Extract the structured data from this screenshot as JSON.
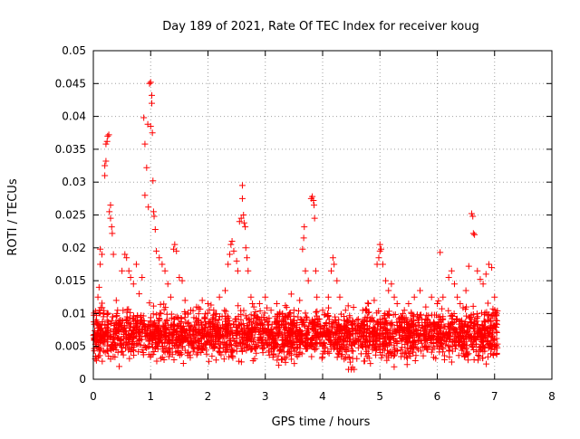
{
  "chart_data": {
    "type": "scatter",
    "title": "Day 189 of 2021, Rate Of TEC Index for receiver koug",
    "xlabel": "GPS time / hours",
    "ylabel": "ROTI / TECUs",
    "xlim": [
      0,
      8
    ],
    "ylim": [
      0,
      0.05
    ],
    "grid": true,
    "marker": "+",
    "x_ticks": [
      0,
      1,
      2,
      3,
      4,
      5,
      6,
      7,
      8
    ],
    "x_tick_labels": [
      "0",
      "1",
      "2",
      "3",
      "4",
      "5",
      "6",
      "7",
      "8"
    ],
    "y_ticks": [
      0,
      0.005,
      0.01,
      0.015,
      0.02,
      0.025,
      0.03,
      0.035,
      0.04,
      0.045,
      0.05
    ],
    "y_tick_labels": [
      "0",
      "0.005",
      "0.01",
      "0.015",
      "0.02",
      "0.025",
      "0.03",
      "0.035",
      "0.04",
      "0.045",
      "0.05"
    ],
    "series": [
      {
        "name": "ROTI",
        "color": "#ff0000",
        "points": [
          [
            0.02,
            0.006
          ],
          [
            0.05,
            0.009
          ],
          [
            0.08,
            0.0125
          ],
          [
            0.1,
            0.014
          ],
          [
            0.12,
            0.0175
          ],
          [
            0.12,
            0.0198
          ],
          [
            0.15,
            0.019
          ],
          [
            0.18,
            0.01
          ],
          [
            0.2,
            0.031
          ],
          [
            0.2,
            0.0325
          ],
          [
            0.22,
            0.0332
          ],
          [
            0.22,
            0.0358
          ],
          [
            0.24,
            0.0362
          ],
          [
            0.25,
            0.037
          ],
          [
            0.27,
            0.0372
          ],
          [
            0.28,
            0.0255
          ],
          [
            0.3,
            0.0265
          ],
          [
            0.3,
            0.0245
          ],
          [
            0.32,
            0.0232
          ],
          [
            0.33,
            0.0222
          ],
          [
            0.35,
            0.019
          ],
          [
            0.4,
            0.012
          ],
          [
            0.45,
            0.0085
          ],
          [
            0.5,
            0.0165
          ],
          [
            0.55,
            0.019
          ],
          [
            0.58,
            0.0185
          ],
          [
            0.62,
            0.0165
          ],
          [
            0.65,
            0.0155
          ],
          [
            0.7,
            0.0145
          ],
          [
            0.75,
            0.0175
          ],
          [
            0.8,
            0.013
          ],
          [
            0.85,
            0.0155
          ],
          [
            0.88,
            0.0398
          ],
          [
            0.9,
            0.0358
          ],
          [
            0.9,
            0.028
          ],
          [
            0.93,
            0.0322
          ],
          [
            0.95,
            0.0388
          ],
          [
            0.96,
            0.0262
          ],
          [
            0.98,
            0.045
          ],
          [
            1.0,
            0.0452
          ],
          [
            1.0,
            0.0385
          ],
          [
            1.02,
            0.0432
          ],
          [
            1.02,
            0.042
          ],
          [
            1.03,
            0.0375
          ],
          [
            1.04,
            0.0302
          ],
          [
            1.05,
            0.0255
          ],
          [
            1.06,
            0.0248
          ],
          [
            1.08,
            0.0228
          ],
          [
            1.1,
            0.0195
          ],
          [
            1.15,
            0.0185
          ],
          [
            1.2,
            0.0175
          ],
          [
            1.25,
            0.0165
          ],
          [
            1.3,
            0.0145
          ],
          [
            1.35,
            0.0125
          ],
          [
            1.4,
            0.0198
          ],
          [
            1.42,
            0.0205
          ],
          [
            1.45,
            0.0195
          ],
          [
            1.5,
            0.0155
          ],
          [
            1.55,
            0.015
          ],
          [
            1.6,
            0.012
          ],
          [
            1.7,
            0.0105
          ],
          [
            1.8,
            0.011
          ],
          [
            1.9,
            0.012
          ],
          [
            2.0,
            0.0115
          ],
          [
            2.1,
            0.0105
          ],
          [
            2.2,
            0.0125
          ],
          [
            2.3,
            0.0135
          ],
          [
            2.35,
            0.0175
          ],
          [
            2.38,
            0.019
          ],
          [
            2.4,
            0.0205
          ],
          [
            2.42,
            0.021
          ],
          [
            2.45,
            0.0195
          ],
          [
            2.5,
            0.018
          ],
          [
            2.52,
            0.0165
          ],
          [
            2.55,
            0.024
          ],
          [
            2.58,
            0.0245
          ],
          [
            2.6,
            0.0295
          ],
          [
            2.6,
            0.0275
          ],
          [
            2.62,
            0.025
          ],
          [
            2.63,
            0.0238
          ],
          [
            2.65,
            0.0232
          ],
          [
            2.66,
            0.02
          ],
          [
            2.68,
            0.0185
          ],
          [
            2.7,
            0.0165
          ],
          [
            2.75,
            0.0125
          ],
          [
            2.8,
            0.011
          ],
          [
            2.9,
            0.0115
          ],
          [
            3.0,
            0.0125
          ],
          [
            3.1,
            0.0105
          ],
          [
            3.2,
            0.0115
          ],
          [
            3.3,
            0.01
          ],
          [
            3.4,
            0.0095
          ],
          [
            3.5,
            0.0105
          ],
          [
            3.6,
            0.012
          ],
          [
            3.65,
            0.0198
          ],
          [
            3.67,
            0.0215
          ],
          [
            3.68,
            0.0232
          ],
          [
            3.7,
            0.0165
          ],
          [
            3.75,
            0.015
          ],
          [
            3.8,
            0.0275
          ],
          [
            3.82,
            0.0278
          ],
          [
            3.84,
            0.0272
          ],
          [
            3.85,
            0.0265
          ],
          [
            3.86,
            0.0245
          ],
          [
            3.88,
            0.0165
          ],
          [
            3.9,
            0.0125
          ],
          [
            4.0,
            0.0105
          ],
          [
            4.1,
            0.0125
          ],
          [
            4.15,
            0.0165
          ],
          [
            4.18,
            0.0185
          ],
          [
            4.2,
            0.0175
          ],
          [
            4.25,
            0.015
          ],
          [
            4.3,
            0.0125
          ],
          [
            4.4,
            0.0105
          ],
          [
            4.45,
            0.0015
          ],
          [
            4.5,
            0.0015
          ],
          [
            4.52,
            0.0018
          ],
          [
            4.55,
            0.0015
          ],
          [
            4.6,
            0.009
          ],
          [
            4.7,
            0.0105
          ],
          [
            4.8,
            0.0115
          ],
          [
            4.9,
            0.012
          ],
          [
            4.95,
            0.0175
          ],
          [
            4.98,
            0.0185
          ],
          [
            5.0,
            0.0205
          ],
          [
            5.0,
            0.0195
          ],
          [
            5.02,
            0.0198
          ],
          [
            5.05,
            0.0175
          ],
          [
            5.1,
            0.015
          ],
          [
            5.15,
            0.0135
          ],
          [
            5.2,
            0.0145
          ],
          [
            5.25,
            0.0125
          ],
          [
            5.3,
            0.0115
          ],
          [
            5.4,
            0.01
          ],
          [
            5.5,
            0.0115
          ],
          [
            5.6,
            0.0125
          ],
          [
            5.7,
            0.0135
          ],
          [
            5.8,
            0.011
          ],
          [
            5.9,
            0.0125
          ],
          [
            6.0,
            0.0115
          ],
          [
            6.05,
            0.0193
          ],
          [
            6.1,
            0.0125
          ],
          [
            6.2,
            0.0155
          ],
          [
            6.25,
            0.0165
          ],
          [
            6.3,
            0.0145
          ],
          [
            6.35,
            0.0125
          ],
          [
            6.4,
            0.0115
          ],
          [
            6.5,
            0.0135
          ],
          [
            6.55,
            0.0172
          ],
          [
            6.6,
            0.0252
          ],
          [
            6.62,
            0.0248
          ],
          [
            6.63,
            0.0222
          ],
          [
            6.65,
            0.022
          ],
          [
            6.7,
            0.0165
          ],
          [
            6.75,
            0.0152
          ],
          [
            6.8,
            0.0145
          ],
          [
            6.85,
            0.016
          ],
          [
            6.9,
            0.0175
          ],
          [
            6.95,
            0.017
          ],
          [
            7.0,
            0.0125
          ],
          [
            7.03,
            0.0085
          ]
        ]
      }
    ],
    "background_band": {
      "description": "dense cloud of ROTI values throughout 0-7.05 hours",
      "x_range": [
        0.0,
        7.05
      ],
      "y_range": [
        0.0015,
        0.0115
      ],
      "typical": 0.006
    }
  }
}
